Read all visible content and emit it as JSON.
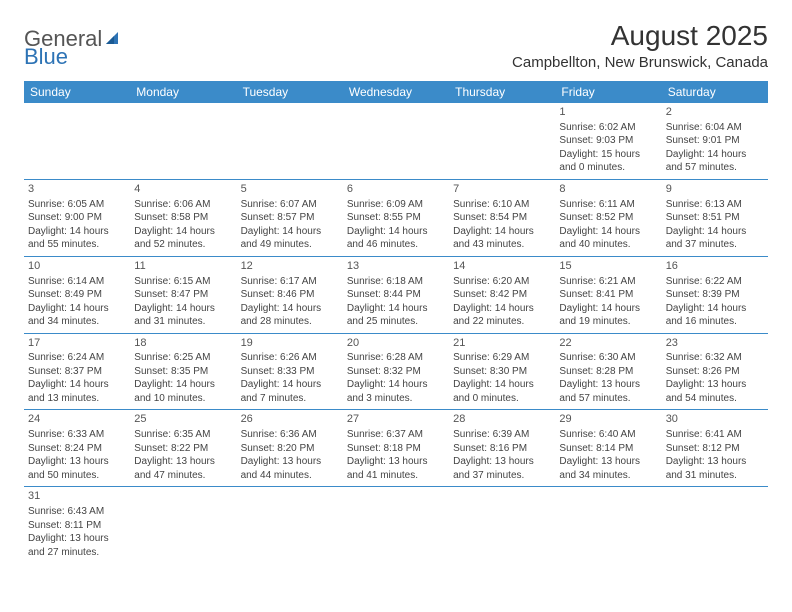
{
  "colors": {
    "header_bg": "#3b8bc9",
    "header_text": "#ffffff",
    "row_border": "#3b8bc9",
    "body_text": "#444444",
    "title_text": "#333333",
    "logo_gray": "#555555",
    "logo_blue": "#2d73b5",
    "background": "#ffffff"
  },
  "typography": {
    "title_fontsize": 28,
    "location_fontsize": 15,
    "dayheader_fontsize": 12,
    "cell_fontsize": 10,
    "logo_fontsize": 22
  },
  "logo": {
    "part1": "General",
    "part2": "Blue"
  },
  "title": "August 2025",
  "location": "Campbellton, New Brunswick, Canada",
  "day_headers": [
    "Sunday",
    "Monday",
    "Tuesday",
    "Wednesday",
    "Thursday",
    "Friday",
    "Saturday"
  ],
  "first_weekday_index": 5,
  "days": [
    {
      "n": "1",
      "sunrise": "Sunrise: 6:02 AM",
      "sunset": "Sunset: 9:03 PM",
      "daylight": "Daylight: 15 hours and 0 minutes."
    },
    {
      "n": "2",
      "sunrise": "Sunrise: 6:04 AM",
      "sunset": "Sunset: 9:01 PM",
      "daylight": "Daylight: 14 hours and 57 minutes."
    },
    {
      "n": "3",
      "sunrise": "Sunrise: 6:05 AM",
      "sunset": "Sunset: 9:00 PM",
      "daylight": "Daylight: 14 hours and 55 minutes."
    },
    {
      "n": "4",
      "sunrise": "Sunrise: 6:06 AM",
      "sunset": "Sunset: 8:58 PM",
      "daylight": "Daylight: 14 hours and 52 minutes."
    },
    {
      "n": "5",
      "sunrise": "Sunrise: 6:07 AM",
      "sunset": "Sunset: 8:57 PM",
      "daylight": "Daylight: 14 hours and 49 minutes."
    },
    {
      "n": "6",
      "sunrise": "Sunrise: 6:09 AM",
      "sunset": "Sunset: 8:55 PM",
      "daylight": "Daylight: 14 hours and 46 minutes."
    },
    {
      "n": "7",
      "sunrise": "Sunrise: 6:10 AM",
      "sunset": "Sunset: 8:54 PM",
      "daylight": "Daylight: 14 hours and 43 minutes."
    },
    {
      "n": "8",
      "sunrise": "Sunrise: 6:11 AM",
      "sunset": "Sunset: 8:52 PM",
      "daylight": "Daylight: 14 hours and 40 minutes."
    },
    {
      "n": "9",
      "sunrise": "Sunrise: 6:13 AM",
      "sunset": "Sunset: 8:51 PM",
      "daylight": "Daylight: 14 hours and 37 minutes."
    },
    {
      "n": "10",
      "sunrise": "Sunrise: 6:14 AM",
      "sunset": "Sunset: 8:49 PM",
      "daylight": "Daylight: 14 hours and 34 minutes."
    },
    {
      "n": "11",
      "sunrise": "Sunrise: 6:15 AM",
      "sunset": "Sunset: 8:47 PM",
      "daylight": "Daylight: 14 hours and 31 minutes."
    },
    {
      "n": "12",
      "sunrise": "Sunrise: 6:17 AM",
      "sunset": "Sunset: 8:46 PM",
      "daylight": "Daylight: 14 hours and 28 minutes."
    },
    {
      "n": "13",
      "sunrise": "Sunrise: 6:18 AM",
      "sunset": "Sunset: 8:44 PM",
      "daylight": "Daylight: 14 hours and 25 minutes."
    },
    {
      "n": "14",
      "sunrise": "Sunrise: 6:20 AM",
      "sunset": "Sunset: 8:42 PM",
      "daylight": "Daylight: 14 hours and 22 minutes."
    },
    {
      "n": "15",
      "sunrise": "Sunrise: 6:21 AM",
      "sunset": "Sunset: 8:41 PM",
      "daylight": "Daylight: 14 hours and 19 minutes."
    },
    {
      "n": "16",
      "sunrise": "Sunrise: 6:22 AM",
      "sunset": "Sunset: 8:39 PM",
      "daylight": "Daylight: 14 hours and 16 minutes."
    },
    {
      "n": "17",
      "sunrise": "Sunrise: 6:24 AM",
      "sunset": "Sunset: 8:37 PM",
      "daylight": "Daylight: 14 hours and 13 minutes."
    },
    {
      "n": "18",
      "sunrise": "Sunrise: 6:25 AM",
      "sunset": "Sunset: 8:35 PM",
      "daylight": "Daylight: 14 hours and 10 minutes."
    },
    {
      "n": "19",
      "sunrise": "Sunrise: 6:26 AM",
      "sunset": "Sunset: 8:33 PM",
      "daylight": "Daylight: 14 hours and 7 minutes."
    },
    {
      "n": "20",
      "sunrise": "Sunrise: 6:28 AM",
      "sunset": "Sunset: 8:32 PM",
      "daylight": "Daylight: 14 hours and 3 minutes."
    },
    {
      "n": "21",
      "sunrise": "Sunrise: 6:29 AM",
      "sunset": "Sunset: 8:30 PM",
      "daylight": "Daylight: 14 hours and 0 minutes."
    },
    {
      "n": "22",
      "sunrise": "Sunrise: 6:30 AM",
      "sunset": "Sunset: 8:28 PM",
      "daylight": "Daylight: 13 hours and 57 minutes."
    },
    {
      "n": "23",
      "sunrise": "Sunrise: 6:32 AM",
      "sunset": "Sunset: 8:26 PM",
      "daylight": "Daylight: 13 hours and 54 minutes."
    },
    {
      "n": "24",
      "sunrise": "Sunrise: 6:33 AM",
      "sunset": "Sunset: 8:24 PM",
      "daylight": "Daylight: 13 hours and 50 minutes."
    },
    {
      "n": "25",
      "sunrise": "Sunrise: 6:35 AM",
      "sunset": "Sunset: 8:22 PM",
      "daylight": "Daylight: 13 hours and 47 minutes."
    },
    {
      "n": "26",
      "sunrise": "Sunrise: 6:36 AM",
      "sunset": "Sunset: 8:20 PM",
      "daylight": "Daylight: 13 hours and 44 minutes."
    },
    {
      "n": "27",
      "sunrise": "Sunrise: 6:37 AM",
      "sunset": "Sunset: 8:18 PM",
      "daylight": "Daylight: 13 hours and 41 minutes."
    },
    {
      "n": "28",
      "sunrise": "Sunrise: 6:39 AM",
      "sunset": "Sunset: 8:16 PM",
      "daylight": "Daylight: 13 hours and 37 minutes."
    },
    {
      "n": "29",
      "sunrise": "Sunrise: 6:40 AM",
      "sunset": "Sunset: 8:14 PM",
      "daylight": "Daylight: 13 hours and 34 minutes."
    },
    {
      "n": "30",
      "sunrise": "Sunrise: 6:41 AM",
      "sunset": "Sunset: 8:12 PM",
      "daylight": "Daylight: 13 hours and 31 minutes."
    },
    {
      "n": "31",
      "sunrise": "Sunrise: 6:43 AM",
      "sunset": "Sunset: 8:11 PM",
      "daylight": "Daylight: 13 hours and 27 minutes."
    }
  ]
}
